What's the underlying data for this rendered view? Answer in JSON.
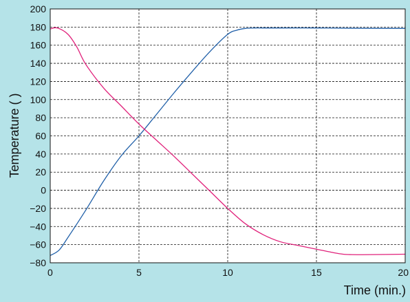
{
  "chart_data": {
    "type": "line",
    "title": "",
    "xlabel": "Time (min.)",
    "ylabel": "Temperature (  )",
    "xlim": [
      0,
      20
    ],
    "ylim": [
      -80,
      200
    ],
    "x_ticks": [
      0,
      5,
      10,
      15,
      20
    ],
    "y_ticks": [
      200,
      180,
      160,
      140,
      120,
      100,
      80,
      60,
      40,
      20,
      0,
      -20,
      -40,
      -60,
      -80
    ],
    "x_tick_labels": [
      "0",
      "5",
      "10",
      "15",
      "20"
    ],
    "y_tick_labels": [
      "200",
      "180",
      "160",
      "140",
      "120",
      "100",
      "80",
      "60",
      "40",
      "20",
      "0",
      "−20",
      "−40",
      "−60",
      "−80"
    ],
    "grid": true,
    "legend": "none",
    "series": [
      {
        "color": "#1f5fa8",
        "x": [
          0,
          0.5,
          1,
          2,
          3,
          4,
          5,
          6,
          7,
          8,
          9,
          10,
          10.5,
          11,
          11.5,
          12,
          13,
          15,
          17,
          20
        ],
        "y": [
          -72,
          -66,
          -52,
          -22,
          10,
          38,
          60,
          84,
          108,
          131,
          153,
          172,
          176.5,
          178.5,
          179,
          179,
          179,
          179,
          178.7,
          178.5
        ]
      },
      {
        "color": "#e0207a",
        "x": [
          0,
          0.4,
          1,
          1.5,
          2,
          3,
          4,
          5,
          6,
          7,
          8,
          9,
          10,
          11,
          12,
          13,
          14,
          15,
          16,
          16.5,
          17,
          18,
          20
        ],
        "y": [
          178,
          179,
          172,
          158,
          139,
          113,
          93,
          73,
          55,
          37,
          18,
          -1,
          -20,
          -37,
          -49,
          -57,
          -61,
          -65,
          -69,
          -70.5,
          -71,
          -71,
          -70.5
        ]
      }
    ]
  }
}
